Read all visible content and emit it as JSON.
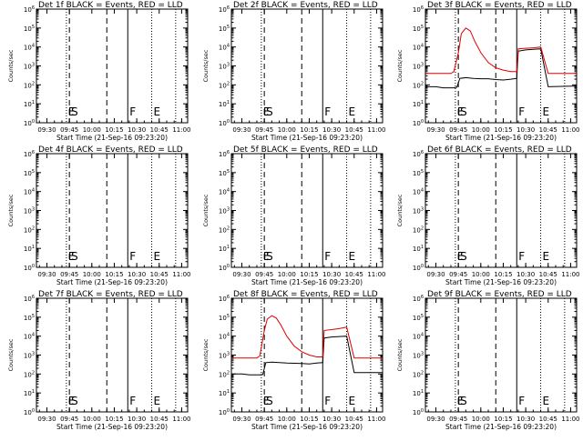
{
  "figure": {
    "xlabel": "Start Time (21-Sep-16 09:23:20)",
    "ylabel": "Counts/sec",
    "xticks": [
      "09:30",
      "09:45",
      "10:00",
      "10:15",
      "10:30",
      "10:45",
      "11:00"
    ],
    "yticks": [
      "10^0",
      "10^1",
      "10^2",
      "10^3",
      "10^4",
      "10^5",
      "10^6"
    ],
    "markers": [
      "E",
      "S",
      "F",
      "E"
    ],
    "colors": {
      "events": "#000000",
      "lld": "#e00000",
      "background": "#ffffff"
    }
  },
  "chart_data": [
    {
      "type": "line",
      "title": "Det 1f BLACK = Events, RED = LLD",
      "x_range": [
        "09:23",
        "11:04"
      ],
      "ylim": [
        1,
        1000000
      ],
      "yscale": "log",
      "series": []
    },
    {
      "type": "line",
      "title": "Det 2f BLACK = Events, RED = LLD",
      "x_range": [
        "09:23",
        "11:04"
      ],
      "ylim": [
        1,
        1000000
      ],
      "yscale": "log",
      "series": []
    },
    {
      "type": "line",
      "title": "Det 3f BLACK = Events, RED = LLD",
      "x_range": [
        "09:23",
        "11:04"
      ],
      "ylim": [
        1,
        1000000
      ],
      "yscale": "log",
      "series": [
        {
          "name": "Events",
          "color": "#000000",
          "x": [
            "09:23",
            "09:30",
            "09:35",
            "09:40",
            "09:42",
            "09:44",
            "09:46",
            "09:50",
            "09:55",
            "10:00",
            "10:05",
            "10:10",
            "10:15",
            "10:20",
            "10:24",
            "10:25",
            "10:30",
            "10:35",
            "10:40",
            "10:45",
            "11:00",
            "11:04"
          ],
          "y": [
            80,
            80,
            70,
            70,
            70,
            75,
            220,
            240,
            220,
            210,
            210,
            190,
            180,
            200,
            220,
            6000,
            7000,
            7500,
            8000,
            80,
            85,
            85
          ]
        },
        {
          "name": "LLD",
          "color": "#e00000",
          "x": [
            "09:23",
            "09:30",
            "09:35",
            "09:40",
            "09:42",
            "09:45",
            "09:47",
            "09:50",
            "09:53",
            "09:56",
            "10:00",
            "10:05",
            "10:10",
            "10:15",
            "10:20",
            "10:24",
            "10:25",
            "10:30",
            "10:35",
            "10:40",
            "10:45",
            "11:00",
            "11:04"
          ],
          "y": [
            400,
            400,
            400,
            400,
            500,
            5000,
            50000,
            100000,
            70000,
            20000,
            5000,
            1500,
            800,
            600,
            500,
            500,
            8000,
            8500,
            9000,
            10000,
            400,
            400,
            400
          ]
        }
      ]
    },
    {
      "type": "line",
      "title": "Det 4f BLACK = Events, RED = LLD",
      "x_range": [
        "09:23",
        "11:04"
      ],
      "ylim": [
        1,
        1000000
      ],
      "yscale": "log",
      "series": []
    },
    {
      "type": "line",
      "title": "Det 5f BLACK = Events, RED = LLD",
      "x_range": [
        "09:23",
        "11:04"
      ],
      "ylim": [
        1,
        1000000
      ],
      "yscale": "log",
      "series": []
    },
    {
      "type": "line",
      "title": "Det 6f BLACK = Events, RED = LLD",
      "x_range": [
        "09:23",
        "11:04"
      ],
      "ylim": [
        1,
        1000000
      ],
      "yscale": "log",
      "series": []
    },
    {
      "type": "line",
      "title": "Det 7f BLACK = Events, RED = LLD",
      "x_range": [
        "09:23",
        "11:04"
      ],
      "ylim": [
        1,
        1000000
      ],
      "yscale": "log",
      "series": []
    },
    {
      "type": "line",
      "title": "Det 8f BLACK = Events, RED = LLD",
      "x_range": [
        "09:23",
        "11:04"
      ],
      "ylim": [
        1,
        1000000
      ],
      "yscale": "log",
      "series": [
        {
          "name": "Events",
          "color": "#000000",
          "x": [
            "09:23",
            "09:30",
            "09:35",
            "09:40",
            "09:42",
            "09:44",
            "09:46",
            "09:50",
            "09:55",
            "10:00",
            "10:05",
            "10:10",
            "10:15",
            "10:20",
            "10:24",
            "10:25",
            "10:30",
            "10:35",
            "10:40",
            "10:45",
            "11:00",
            "11:04"
          ],
          "y": [
            100,
            100,
            90,
            90,
            90,
            95,
            400,
            420,
            400,
            380,
            370,
            360,
            340,
            380,
            400,
            8000,
            9000,
            9500,
            10000,
            120,
            120,
            120
          ]
        },
        {
          "name": "LLD",
          "color": "#e00000",
          "x": [
            "09:23",
            "09:30",
            "09:35",
            "09:40",
            "09:42",
            "09:45",
            "09:47",
            "09:50",
            "09:53",
            "09:56",
            "10:00",
            "10:05",
            "10:10",
            "10:15",
            "10:20",
            "10:24",
            "10:25",
            "10:30",
            "10:35",
            "10:40",
            "10:45",
            "11:00",
            "11:04"
          ],
          "y": [
            700,
            700,
            700,
            700,
            900,
            20000,
            80000,
            120000,
            90000,
            40000,
            10000,
            3000,
            1500,
            1000,
            800,
            800,
            20000,
            22000,
            25000,
            30000,
            700,
            700,
            700
          ]
        }
      ]
    },
    {
      "type": "line",
      "title": "Det 9f BLACK = Events, RED = LLD",
      "x_range": [
        "09:23",
        "11:04"
      ],
      "ylim": [
        1,
        1000000
      ],
      "yscale": "log",
      "series": []
    }
  ],
  "vlines": [
    {
      "time": "09:43",
      "style": "dotted",
      "marker": "E"
    },
    {
      "time": "09:45",
      "style": "dashed",
      "marker": "S"
    },
    {
      "time": "10:10",
      "style": "dashed",
      "marker": ""
    },
    {
      "time": "10:24",
      "style": "solid",
      "marker": "F"
    },
    {
      "time": "10:40",
      "style": "dotted",
      "marker": "E"
    },
    {
      "time": "10:56",
      "style": "dotted",
      "marker": ""
    }
  ]
}
